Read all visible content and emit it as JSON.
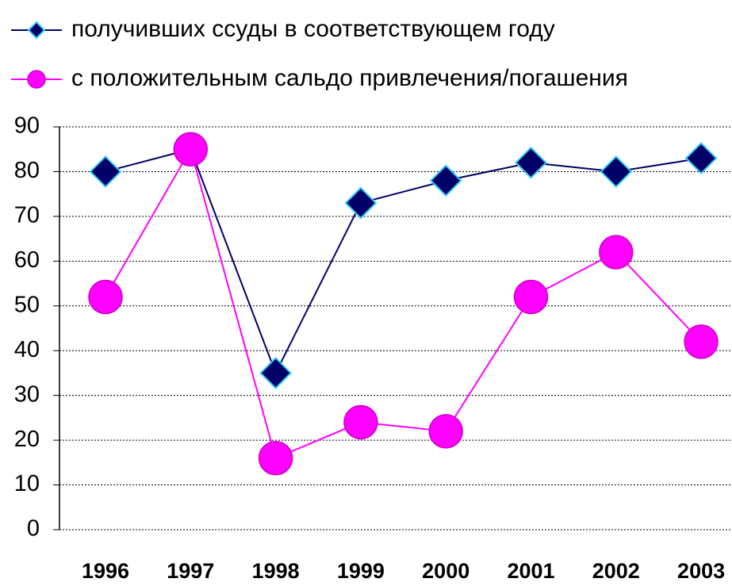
{
  "chart_data": {
    "type": "line",
    "categories": [
      "1996",
      "1997",
      "1998",
      "1999",
      "2000",
      "2001",
      "2002",
      "2003"
    ],
    "series": [
      {
        "name": "получивших ссуды в соответствующем году",
        "color": "#000066",
        "marker": "diamond",
        "values": [
          80,
          85,
          35,
          73,
          78,
          82,
          80,
          83
        ]
      },
      {
        "name": "с положительным сальдо привлечения/погашения",
        "color": "#ff00ff",
        "marker": "circle",
        "values": [
          52,
          85,
          16,
          24,
          22,
          52,
          62,
          42
        ]
      }
    ],
    "ylim": [
      0,
      90
    ],
    "yticks": [
      0,
      10,
      20,
      30,
      40,
      50,
      60,
      70,
      80,
      90
    ],
    "grid": true,
    "legend": "top"
  }
}
